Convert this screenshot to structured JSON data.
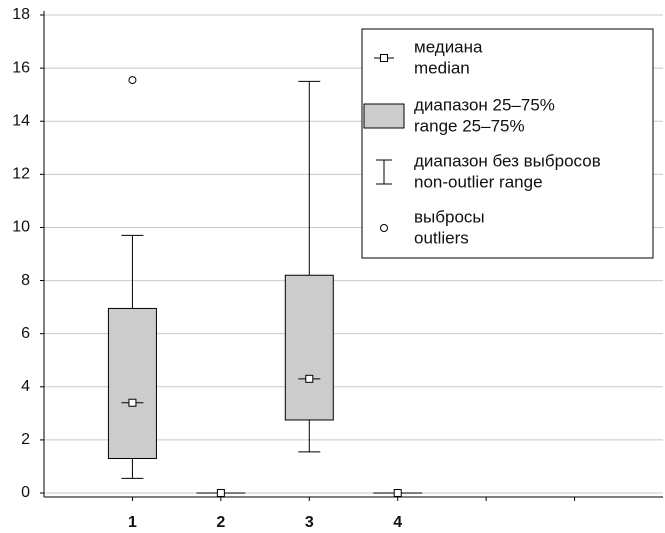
{
  "chart_data": {
    "type": "box",
    "categories": [
      "1",
      "2",
      "3",
      "4"
    ],
    "boxes": [
      {
        "whisker_low": 0.55,
        "q1": 1.3,
        "median": 3.4,
        "q3": 6.95,
        "whisker_high": 9.7,
        "outliers": [
          15.55
        ]
      },
      {
        "whisker_low": 0,
        "q1": 0,
        "median": 0,
        "q3": 0,
        "whisker_high": 0,
        "outliers": []
      },
      {
        "whisker_low": 1.55,
        "q1": 2.75,
        "median": 4.3,
        "q3": 8.2,
        "whisker_high": 15.5,
        "outliers": []
      },
      {
        "whisker_low": 0,
        "q1": 0,
        "median": 0,
        "q3": 0,
        "whisker_high": 0,
        "outliers": []
      }
    ],
    "box_color": "#cccccc",
    "ylim": [
      -0.15,
      18
    ],
    "yticks": [
      0,
      2,
      4,
      6,
      8,
      10,
      12,
      14,
      16,
      18
    ],
    "grid": true,
    "legend": [
      {
        "lines": [
          "медиана",
          "median"
        ]
      },
      {
        "lines": [
          "диапазон 25–75%",
          "range 25–75%"
        ]
      },
      {
        "lines": [
          "диапазон без выбросов",
          "non-outlier range"
        ]
      },
      {
        "lines": [
          "выбросы",
          "outliers"
        ]
      }
    ]
  }
}
